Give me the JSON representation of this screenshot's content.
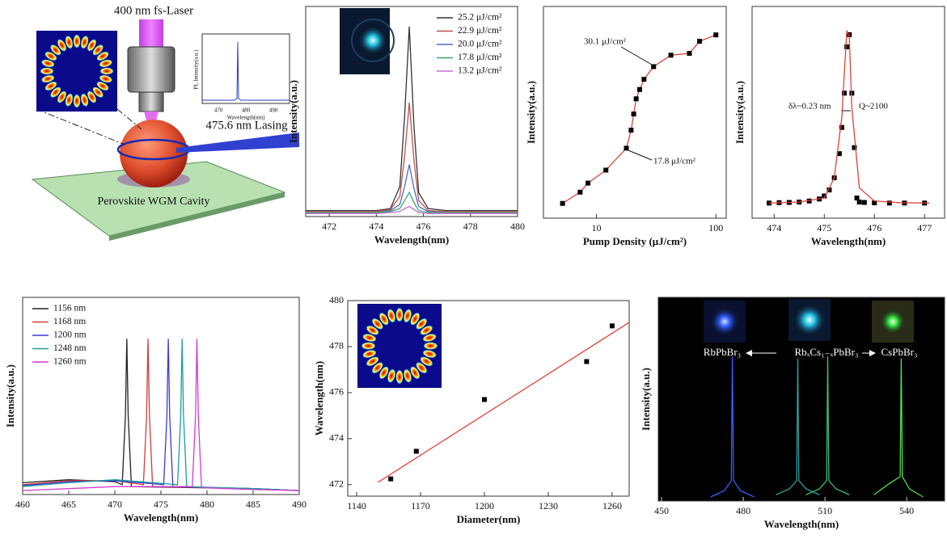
{
  "schematic": {
    "laser_label": "400 nm fs-Laser",
    "lasing_label": "475.6 nm Lasing",
    "cavity_label": "Perovskite WGM Cavity",
    "inset": {
      "y_label": "PL Intensity(a.u.)",
      "x_label": "Wavelength(nm)",
      "xticks": [
        470,
        480,
        490
      ]
    }
  },
  "chart_data": [
    {
      "type": "line",
      "x_label": "Wavelength(nm)",
      "y_label": "Intensity(a.u.)",
      "legend": "upper right",
      "x": [
        471,
        472,
        473,
        474,
        474.6,
        475.0,
        475.2,
        475.4,
        475.6,
        475.8,
        476.2,
        477,
        478,
        479,
        480
      ],
      "xlim": [
        471,
        480
      ],
      "xticks": [
        472,
        474,
        476,
        478,
        480
      ],
      "ylim": [
        0,
        1.05
      ],
      "series": [
        {
          "name": "25.2 μJ/cm²",
          "color": "#333333",
          "values": [
            0.03,
            0.03,
            0.03,
            0.03,
            0.04,
            0.15,
            0.5,
            0.95,
            0.45,
            0.12,
            0.04,
            0.03,
            0.03,
            0.03,
            0.03
          ]
        },
        {
          "name": "22.9 μJ/cm²",
          "color": "#c0504d",
          "values": [
            0.025,
            0.025,
            0.025,
            0.025,
            0.035,
            0.1,
            0.3,
            0.57,
            0.28,
            0.08,
            0.03,
            0.025,
            0.025,
            0.025,
            0.025
          ]
        },
        {
          "name": "20.0 μJ/cm²",
          "color": "#4f6bc4",
          "values": [
            0.02,
            0.02,
            0.02,
            0.02,
            0.03,
            0.06,
            0.15,
            0.26,
            0.14,
            0.05,
            0.025,
            0.02,
            0.02,
            0.02,
            0.02
          ]
        },
        {
          "name": "17.8 μJ/cm²",
          "color": "#3aa86f",
          "values": [
            0.02,
            0.02,
            0.02,
            0.02,
            0.025,
            0.04,
            0.08,
            0.12,
            0.07,
            0.03,
            0.02,
            0.02,
            0.02,
            0.02,
            0.02
          ]
        },
        {
          "name": "13.2 μJ/cm²",
          "color": "#c86cd6",
          "values": [
            0.015,
            0.015,
            0.015,
            0.015,
            0.02,
            0.025,
            0.04,
            0.05,
            0.035,
            0.02,
            0.015,
            0.015,
            0.015,
            0.015,
            0.015
          ]
        }
      ]
    },
    {
      "type": "scatter",
      "x_label": "Pump Density (μJ/cm²)",
      "y_label": "Intensity(a.u.)",
      "xscale": "log",
      "yscale": "log",
      "x": [
        5.2,
        7.3,
        8.5,
        12,
        17.8,
        19.5,
        20.5,
        21.5,
        23,
        25,
        30.1,
        42,
        60,
        73,
        100
      ],
      "xlim": [
        3.6,
        122
      ],
      "xticks": [
        10,
        100
      ],
      "ylim": [
        10,
        100000
      ],
      "series": [
        {
          "color": "#000000",
          "line_color": "#d9453e",
          "values": [
            19,
            31,
            46,
            81,
            210,
            460,
            930,
            1800,
            2700,
            4200,
            7300,
            12000,
            13000,
            22000,
            29000
          ]
        }
      ],
      "annotations": [
        "30.1 μJ/cm²",
        "17.8 μJ/cm²"
      ]
    },
    {
      "type": "scatter",
      "x_label": "Wavelength(nm)",
      "y_label": "Intensity(a.u.)",
      "x": [
        473.9,
        474.1,
        474.3,
        474.5,
        474.7,
        474.9,
        475.0,
        475.1,
        475.2,
        475.3,
        475.35,
        475.4,
        475.45,
        475.5,
        475.55,
        475.6,
        475.65,
        475.7,
        475.8,
        476.0,
        476.3,
        476.6,
        477.0
      ],
      "xlim": [
        473.56,
        477.4
      ],
      "xticks": [
        474,
        475,
        476,
        477
      ],
      "ylim": [
        0,
        1.05
      ],
      "series": [
        {
          "color": "#000000",
          "values": [
            0.075,
            0.077,
            0.078,
            0.08,
            0.085,
            0.095,
            0.11,
            0.14,
            0.2,
            0.32,
            0.45,
            0.62,
            0.85,
            0.91,
            0.62,
            0.35,
            0.1,
            0.08,
            0.078,
            0.076,
            0.075,
            0.075,
            0.075
          ]
        },
        {
          "color": "#e0403a",
          "mode": "line",
          "x": [
            473.9,
            474.5,
            475.0,
            475.2,
            475.35,
            475.45,
            475.5,
            475.55,
            475.7,
            476.0,
            476.5,
            477.1
          ],
          "values": [
            0.075,
            0.08,
            0.1,
            0.2,
            0.5,
            0.93,
            0.9,
            0.55,
            0.15,
            0.085,
            0.077,
            0.075
          ]
        }
      ],
      "annotations": [
        "δλ~0.23 nm",
        "Q~2100"
      ]
    },
    {
      "type": "line",
      "x_label": "Wavelength(nm)",
      "y_label": "Intensity(a.u.)",
      "legend": "upper left",
      "xlim": [
        460,
        490
      ],
      "xticks": [
        460,
        465,
        470,
        475,
        480,
        485,
        490
      ],
      "ylim": [
        0,
        1
      ],
      "series": [
        {
          "name": "1156 nm",
          "color": "#222222",
          "x": [
            460,
            465,
            470,
            470.8,
            471.15,
            471.3,
            471.45,
            471.8,
            485,
            490
          ],
          "values": [
            0.06,
            0.075,
            0.065,
            0.05,
            0.4,
            0.79,
            0.4,
            0.04,
            0.03,
            0.02
          ]
        },
        {
          "name": "1168 nm",
          "color": "#d43a3a",
          "x": [
            460,
            465,
            470,
            473.1,
            473.45,
            473.6,
            473.75,
            474.1,
            485,
            490
          ],
          "values": [
            0.05,
            0.07,
            0.07,
            0.05,
            0.4,
            0.79,
            0.4,
            0.04,
            0.03,
            0.02
          ]
        },
        {
          "name": "1200 nm",
          "color": "#3a3ad4",
          "x": [
            460,
            465,
            470,
            475.3,
            475.65,
            475.8,
            475.95,
            476.3,
            485,
            490
          ],
          "values": [
            0.045,
            0.065,
            0.07,
            0.05,
            0.4,
            0.79,
            0.4,
            0.04,
            0.03,
            0.02
          ]
        },
        {
          "name": "1248 nm",
          "color": "#1a9e9e",
          "x": [
            460,
            465,
            470,
            476.8,
            477.15,
            477.3,
            477.45,
            477.8,
            485,
            490
          ],
          "values": [
            0.04,
            0.06,
            0.075,
            0.05,
            0.4,
            0.79,
            0.4,
            0.04,
            0.03,
            0.02
          ]
        },
        {
          "name": "1260 nm",
          "color": "#d43ad4",
          "x": [
            460,
            465,
            470,
            478.4,
            478.75,
            478.9,
            479.05,
            479.4,
            485,
            490
          ],
          "values": [
            0.02,
            0.03,
            0.04,
            0.04,
            0.4,
            0.79,
            0.4,
            0.035,
            0.025,
            0.02
          ]
        }
      ]
    },
    {
      "type": "scatter",
      "x_label": "Diameter(nm)",
      "y_label": "Wavelength(nm)",
      "x": [
        1156,
        1168,
        1200,
        1248,
        1260
      ],
      "xlim": [
        1135.8,
        1268
      ],
      "xticks": [
        1140,
        1170,
        1200,
        1230,
        1260
      ],
      "ylim": [
        471.5,
        480
      ],
      "yticks": [
        472,
        474,
        476,
        478,
        480
      ],
      "series": [
        {
          "color": "#000000",
          "values": [
            472.25,
            473.45,
            475.7,
            477.35,
            478.9
          ]
        },
        {
          "color": "#e0403a",
          "mode": "line",
          "x": [
            1150,
            1268
          ],
          "values": [
            472.1,
            479.05
          ]
        }
      ]
    },
    {
      "type": "line",
      "x_label": "Wavelength(nm)",
      "y_label": "Intensity(a.u.)",
      "background": "#000000",
      "xlim": [
        448.8,
        553.9
      ],
      "xticks": [
        450,
        480,
        510,
        540
      ],
      "ylim": [
        0,
        1
      ],
      "series": [
        {
          "color": "#3a5cff",
          "x": [
            468,
            473,
            475.6,
            476,
            476.4,
            479,
            484
          ],
          "values": [
            0.02,
            0.05,
            0.1,
            0.71,
            0.1,
            0.05,
            0.02
          ]
        },
        {
          "color": "#2aa0a0",
          "x": [
            492,
            497,
            499.6,
            500,
            500.4,
            503,
            508
          ],
          "values": [
            0.03,
            0.06,
            0.1,
            0.7,
            0.1,
            0.06,
            0.03
          ]
        },
        {
          "color": "#3cbf7a",
          "x": [
            503,
            508,
            510.6,
            511,
            511.4,
            514,
            519
          ],
          "values": [
            0.03,
            0.06,
            0.1,
            0.71,
            0.1,
            0.06,
            0.03
          ]
        },
        {
          "color": "#4be04b",
          "x": [
            528,
            533,
            537.6,
            538,
            538.4,
            541,
            546
          ],
          "values": [
            0.03,
            0.08,
            0.12,
            0.7,
            0.12,
            0.06,
            0.02
          ]
        }
      ],
      "annotations": [
        "RbPbBr₃",
        "RbₓCs₁₋ₓPbBr₃",
        "CsPbBr₃"
      ]
    }
  ]
}
